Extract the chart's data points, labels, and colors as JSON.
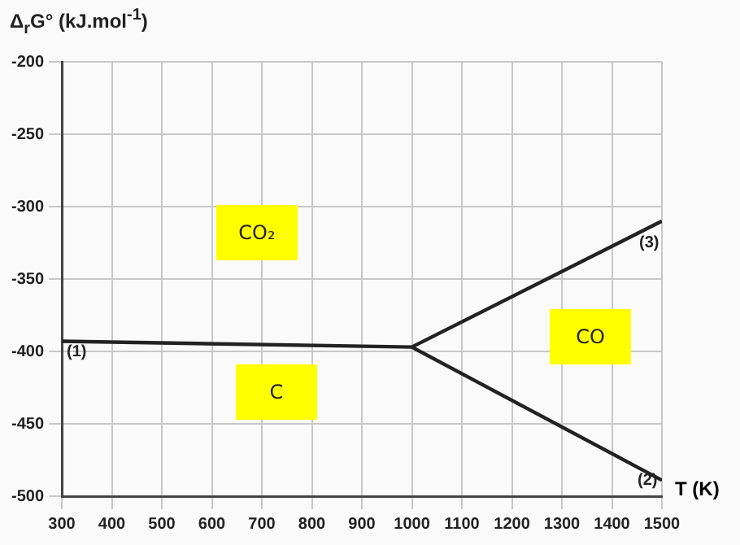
{
  "chart_data": {
    "type": "line",
    "ylabel": "Δ$_{r}$G° (kJ.mol$^{-1}$)",
    "xlabel": "T (K)",
    "series": [
      {
        "color": "#222222",
        "x": [
          300,
          1000
        ],
        "values": [
          -393,
          -397
        ]
      },
      {
        "color": "#222222",
        "x": [
          1000,
          1500
        ],
        "values": [
          -397,
          -489
        ]
      },
      {
        "color": "#222222",
        "x": [
          1000,
          1500
        ],
        "values": [
          -397,
          -310
        ]
      }
    ],
    "xlim": [
      300,
      1500
    ],
    "xticks": [
      300,
      400,
      500,
      600,
      700,
      800,
      900,
      1000,
      1100,
      1200,
      1300,
      1400,
      1500
    ],
    "ylim": [
      -500,
      -200
    ],
    "yticks": [
      -500,
      -450,
      -400,
      -350,
      -300,
      -250,
      -200
    ],
    "grid": true,
    "legend": false,
    "marker": "none",
    "line_style": "solid",
    "annotations": [
      "CO₂",
      "C",
      "CO",
      "(1)",
      "(2)",
      "(3)"
    ]
  }
}
